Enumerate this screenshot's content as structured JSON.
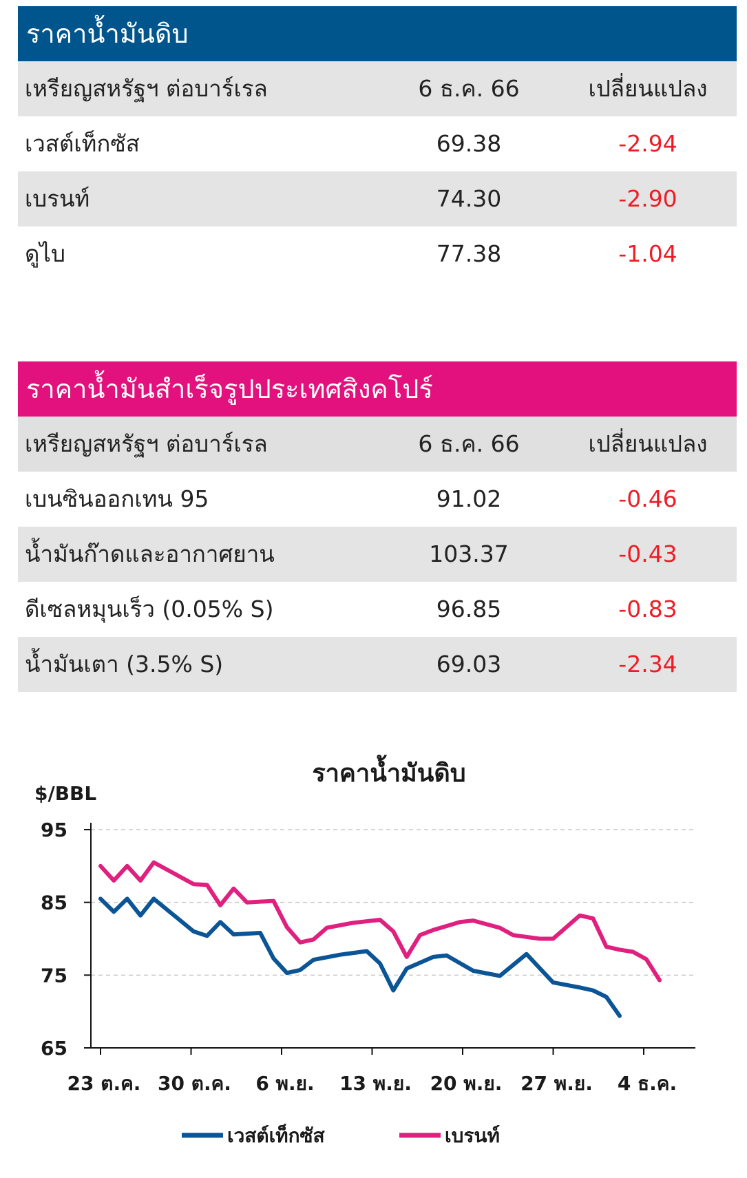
{
  "crude": {
    "title": "ราคาน้ำมันดิบ",
    "header": {
      "unit": "เหรียญสหรัฐฯ ต่อบาร์เรล",
      "date": "6 ธ.ค. 66",
      "change": "เปลี่ยนแปลง"
    },
    "rows": [
      {
        "name": "เวสต์เท็กซัส",
        "price": "69.38",
        "change": "-2.94"
      },
      {
        "name": "เบรนท์",
        "price": "74.30",
        "change": "-2.90"
      },
      {
        "name": "ดูไบ",
        "price": "77.38",
        "change": "-1.04"
      }
    ],
    "header_color": "#00558c"
  },
  "singapore": {
    "title": "ราคาน้ำมันสำเร็จรูปประเทศสิงคโปร์",
    "header": {
      "unit": "เหรียญสหรัฐฯ ต่อบาร์เรล",
      "date": "6 ธ.ค. 66",
      "change": "เปลี่ยนแปลง"
    },
    "rows": [
      {
        "name": "เบนซินออกเทน 95",
        "price": "91.02",
        "change": "-0.46"
      },
      {
        "name": "น้ำมันก๊าดและอากาศยาน",
        "price": "103.37",
        "change": "-0.43"
      },
      {
        "name": "ดีเซลหมุนเร็ว (0.05% S)",
        "price": "96.85",
        "change": "-0.83"
      },
      {
        "name": "น้ำมันเตา (3.5% S)",
        "price": "69.03",
        "change": "-2.34"
      }
    ],
    "header_color": "#e3117d"
  },
  "chart_data": {
    "type": "line",
    "title": "ราคาน้ำมันดิบ",
    "ylabel": "$/BBL",
    "ylim": [
      65,
      95
    ],
    "yticks": [
      95,
      85,
      75,
      65
    ],
    "grid": "horizontal-dashed",
    "legend_position": "bottom",
    "x_ticks": [
      {
        "label": "23 ต.ค.",
        "i": 0
      },
      {
        "label": "30 ต.ค.",
        "i": 5
      },
      {
        "label": "6 พ.ย.",
        "i": 10
      },
      {
        "label": "13 พ.ย.",
        "i": 15
      },
      {
        "label": "20 พ.ย.",
        "i": 20
      },
      {
        "label": "27 พ.ย.",
        "i": 25
      },
      {
        "label": "4 ธ.ค.",
        "i": 30
      }
    ],
    "x_count": 32,
    "series": [
      {
        "name": "เวสต์เท็กซัส",
        "color": "#0b5496",
        "points": [
          [
            0,
            85.5
          ],
          [
            1,
            83.7
          ],
          [
            2,
            85.5
          ],
          [
            3,
            83.2
          ],
          [
            4,
            85.5
          ],
          [
            7,
            81.0
          ],
          [
            8,
            80.4
          ],
          [
            9,
            82.3
          ],
          [
            10,
            80.6
          ],
          [
            12,
            80.8
          ],
          [
            13,
            77.3
          ],
          [
            14,
            75.3
          ],
          [
            15,
            75.7
          ],
          [
            16,
            77.1
          ],
          [
            18,
            77.8
          ],
          [
            20,
            78.3
          ],
          [
            21,
            76.6
          ],
          [
            22,
            72.9
          ],
          [
            23,
            75.9
          ],
          [
            25,
            77.5
          ],
          [
            26,
            77.7
          ],
          [
            28,
            75.6
          ],
          [
            30,
            74.9
          ],
          [
            32,
            77.9
          ],
          [
            34,
            74.0
          ],
          [
            36,
            73.3
          ],
          [
            37,
            72.9
          ],
          [
            38,
            72.0
          ],
          [
            39,
            69.4
          ]
        ]
      },
      {
        "name": "เบรนท์",
        "color": "#e0207f",
        "points": [
          [
            0,
            90.0
          ],
          [
            1,
            88.0
          ],
          [
            2,
            90.0
          ],
          [
            3,
            88.0
          ],
          [
            4,
            90.5
          ],
          [
            6,
            88.5
          ],
          [
            7,
            87.5
          ],
          [
            8,
            87.4
          ],
          [
            9,
            84.6
          ],
          [
            10,
            86.9
          ],
          [
            11,
            85.0
          ],
          [
            13,
            85.2
          ],
          [
            14,
            81.6
          ],
          [
            15,
            79.5
          ],
          [
            16,
            79.9
          ],
          [
            17,
            81.5
          ],
          [
            19,
            82.2
          ],
          [
            21,
            82.6
          ],
          [
            22,
            81.0
          ],
          [
            23,
            77.5
          ],
          [
            24,
            80.5
          ],
          [
            25,
            81.2
          ],
          [
            27,
            82.3
          ],
          [
            28,
            82.5
          ],
          [
            30,
            81.5
          ],
          [
            31,
            80.5
          ],
          [
            33,
            80.0
          ],
          [
            34,
            80.0
          ],
          [
            36,
            83.2
          ],
          [
            37,
            82.8
          ],
          [
            38,
            78.9
          ],
          [
            39,
            78.5
          ],
          [
            40,
            78.2
          ],
          [
            41,
            77.2
          ],
          [
            42,
            74.3
          ]
        ]
      }
    ]
  }
}
